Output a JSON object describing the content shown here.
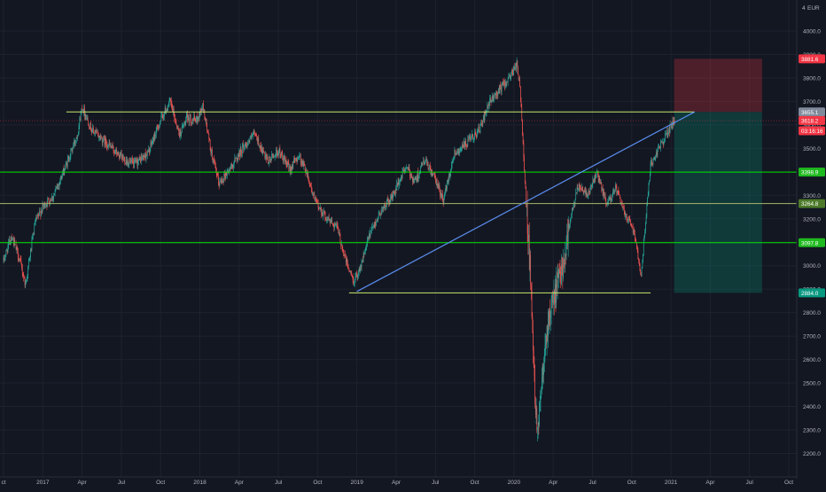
{
  "chart_data": {
    "type": "candlestick",
    "currency": "EUR",
    "price_axis_marker": "4",
    "y_ticks": [
      2200,
      2300,
      2400,
      2500,
      2600,
      2700,
      2800,
      2900,
      3000,
      3100,
      3200,
      3300,
      3400,
      3500,
      3600,
      3700,
      3800,
      3900,
      4000
    ],
    "y_tick_labels": [
      "2200.0",
      "2300.0",
      "2400.0",
      "2500.0",
      "2600.0",
      "2700.0",
      "2800.0",
      "2900.0",
      "3000.0",
      "3100.0",
      "3200.0",
      "3300.0",
      "3400.0",
      "3500.0",
      "3600.0",
      "3700.0",
      "3800.0",
      "3900.0",
      "4000.0"
    ],
    "x_ticks": [
      {
        "label": "ct",
        "t": 0.0
      },
      {
        "label": "2017",
        "t": 0.25
      },
      {
        "label": "Apr",
        "t": 0.5
      },
      {
        "label": "Jul",
        "t": 0.75
      },
      {
        "label": "Oct",
        "t": 1.0
      },
      {
        "label": "2018",
        "t": 1.25
      },
      {
        "label": "Apr",
        "t": 1.5
      },
      {
        "label": "Jul",
        "t": 1.75
      },
      {
        "label": "Oct",
        "t": 2.0
      },
      {
        "label": "2019",
        "t": 2.25
      },
      {
        "label": "Apr",
        "t": 2.5
      },
      {
        "label": "Jul",
        "t": 2.75
      },
      {
        "label": "Oct",
        "t": 3.0
      },
      {
        "label": "2020",
        "t": 3.25
      },
      {
        "label": "Apr",
        "t": 3.5
      },
      {
        "label": "Jul",
        "t": 3.75
      },
      {
        "label": "Oct",
        "t": 4.0
      },
      {
        "label": "2021",
        "t": 4.25
      },
      {
        "label": "Apr",
        "t": 4.5
      },
      {
        "label": "Jul",
        "t": 4.75
      },
      {
        "label": "Oct",
        "t": 5.0
      }
    ],
    "price_anchors": [
      [
        0.0,
        3020
      ],
      [
        0.05,
        3130
      ],
      [
        0.1,
        3030
      ],
      [
        0.14,
        2920
      ],
      [
        0.2,
        3180
      ],
      [
        0.25,
        3250
      ],
      [
        0.32,
        3300
      ],
      [
        0.4,
        3430
      ],
      [
        0.47,
        3560
      ],
      [
        0.5,
        3680
      ],
      [
        0.56,
        3580
      ],
      [
        0.66,
        3520
      ],
      [
        0.75,
        3460
      ],
      [
        0.83,
        3430
      ],
      [
        0.92,
        3480
      ],
      [
        1.0,
        3620
      ],
      [
        1.06,
        3700
      ],
      [
        1.12,
        3560
      ],
      [
        1.17,
        3630
      ],
      [
        1.23,
        3620
      ],
      [
        1.27,
        3680
      ],
      [
        1.32,
        3490
      ],
      [
        1.37,
        3350
      ],
      [
        1.45,
        3420
      ],
      [
        1.52,
        3500
      ],
      [
        1.6,
        3560
      ],
      [
        1.68,
        3440
      ],
      [
        1.75,
        3490
      ],
      [
        1.82,
        3410
      ],
      [
        1.88,
        3470
      ],
      [
        1.93,
        3400
      ],
      [
        1.98,
        3280
      ],
      [
        2.06,
        3200
      ],
      [
        2.12,
        3170
      ],
      [
        2.18,
        3020
      ],
      [
        2.23,
        2930
      ],
      [
        2.28,
        3010
      ],
      [
        2.33,
        3130
      ],
      [
        2.4,
        3230
      ],
      [
        2.48,
        3300
      ],
      [
        2.56,
        3420
      ],
      [
        2.62,
        3360
      ],
      [
        2.68,
        3450
      ],
      [
        2.74,
        3380
      ],
      [
        2.8,
        3280
      ],
      [
        2.87,
        3480
      ],
      [
        2.95,
        3520
      ],
      [
        3.03,
        3580
      ],
      [
        3.1,
        3700
      ],
      [
        3.17,
        3760
      ],
      [
        3.22,
        3800
      ],
      [
        3.27,
        3860
      ],
      [
        3.29,
        3740
      ],
      [
        3.31,
        3500
      ],
      [
        3.33,
        3240
      ],
      [
        3.36,
        2900
      ],
      [
        3.38,
        2500
      ],
      [
        3.4,
        2300
      ],
      [
        3.42,
        2460
      ],
      [
        3.45,
        2700
      ],
      [
        3.5,
        2850
      ],
      [
        3.56,
        3000
      ],
      [
        3.61,
        3200
      ],
      [
        3.66,
        3340
      ],
      [
        3.72,
        3310
      ],
      [
        3.78,
        3390
      ],
      [
        3.84,
        3260
      ],
      [
        3.9,
        3330
      ],
      [
        3.95,
        3230
      ],
      [
        4.0,
        3180
      ],
      [
        4.03,
        3090
      ],
      [
        4.06,
        2960
      ],
      [
        4.08,
        3130
      ],
      [
        4.12,
        3430
      ],
      [
        4.18,
        3510
      ],
      [
        4.23,
        3570
      ],
      [
        4.27,
        3618
      ]
    ],
    "last_price": 3618.2,
    "horizontal_levels": [
      {
        "label": "3655.1",
        "value": 3655.1,
        "color": "#c5e86c"
      },
      {
        "label": "3398.9",
        "value": 3398.9,
        "color": "#00e600"
      },
      {
        "label": "3264.8",
        "value": 3264.8,
        "color": "#a5b86a"
      },
      {
        "label": "3097.8",
        "value": 3097.8,
        "color": "#00e600"
      },
      {
        "label": "2884.0",
        "value": 2884.0,
        "color": "#c5e86c"
      }
    ],
    "trend_line": {
      "from": [
        2.25,
        2890
      ],
      "to": [
        4.4,
        3655
      ],
      "color": "#5b8def"
    },
    "position": {
      "t_start": 4.27,
      "t_end": 4.83,
      "stop": 3881.6,
      "entry": 3655.1,
      "target": 2884.0,
      "stop_color": "#f23645",
      "target_color": "#089981"
    },
    "axis_badges": [
      {
        "label": "3881.6",
        "value": 3881.6,
        "color": "#f23645"
      },
      {
        "label": "3655.1",
        "value": 3655.1,
        "color": "#808a9b"
      },
      {
        "label": "3618.2",
        "value": 3618.2,
        "color": "#f23645"
      },
      {
        "label": "03:16:16",
        "value": 3575,
        "color": "#f23645"
      },
      {
        "label": "3398.9",
        "value": 3398.9,
        "color": "#1fba1f"
      },
      {
        "label": "3264.8",
        "value": 3264.8,
        "color": "#4c7a2a"
      },
      {
        "label": "3097.8",
        "value": 3097.8,
        "color": "#1fba1f"
      },
      {
        "label": "2884.0",
        "value": 2884.0,
        "color": "#089981"
      }
    ]
  }
}
